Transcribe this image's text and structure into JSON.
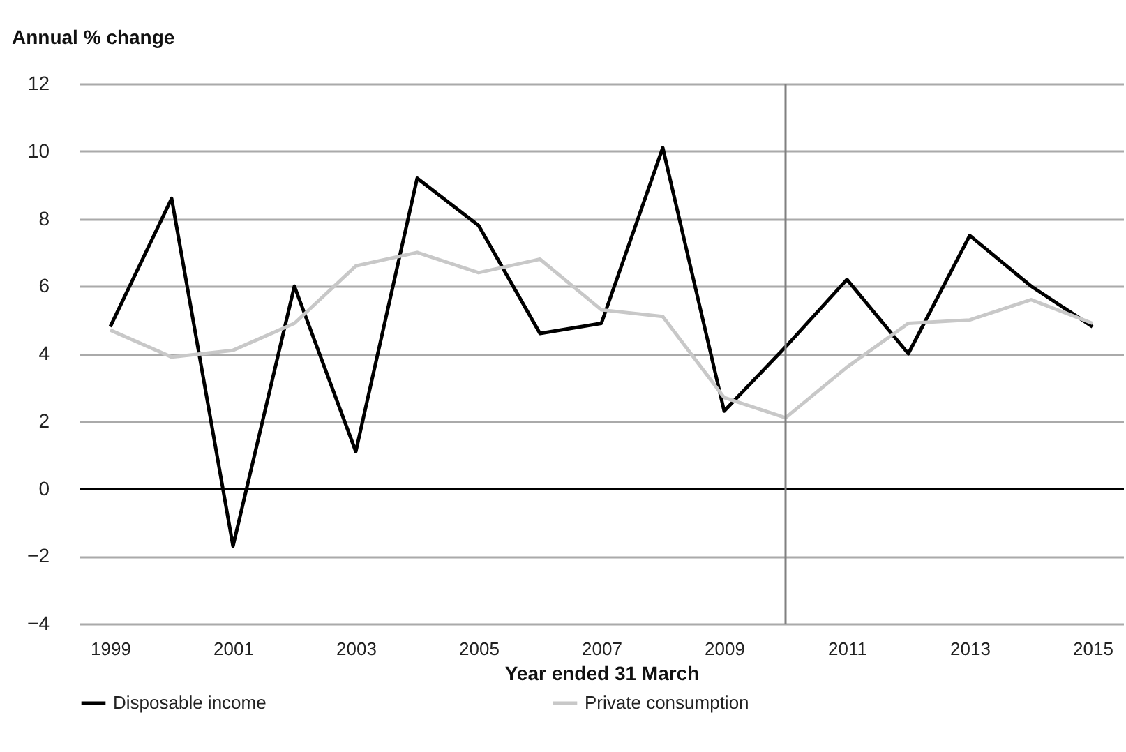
{
  "chart_data": {
    "type": "line",
    "xlabel": "Year ended 31 March",
    "ylabel": "Annual % change",
    "x": [
      1999,
      2000,
      2001,
      2002,
      2003,
      2004,
      2005,
      2006,
      2007,
      2008,
      2009,
      2010,
      2011,
      2012,
      2013,
      2014,
      2015
    ],
    "series": [
      {
        "name": "Disposable income",
        "color": "#000000",
        "values": [
          4.8,
          8.6,
          -1.7,
          6.0,
          1.1,
          9.2,
          7.8,
          4.6,
          4.9,
          10.1,
          2.3,
          4.2,
          6.2,
          4.0,
          7.5,
          6.0,
          4.8
        ]
      },
      {
        "name": "Private consumption",
        "color": "#c8c8c8",
        "values": [
          4.7,
          3.9,
          4.1,
          4.9,
          6.6,
          7.0,
          6.4,
          6.8,
          5.3,
          5.1,
          2.7,
          2.1,
          3.6,
          4.9,
          5.0,
          5.6,
          4.9
        ]
      }
    ],
    "xlim": [
      1998.5,
      2015.5
    ],
    "xticks": [
      1999,
      2001,
      2003,
      2005,
      2007,
      2009,
      2011,
      2013,
      2015
    ],
    "ylim": [
      -4,
      12
    ],
    "yticks": [
      -4,
      -2,
      0,
      2,
      4,
      6,
      8,
      10,
      12
    ],
    "ref_lines": [
      {
        "axis": "x",
        "value": 2010,
        "color": "#808080"
      }
    ],
    "grid": "y",
    "legend": "bottom",
    "marker": "none",
    "line_style": "solid"
  }
}
